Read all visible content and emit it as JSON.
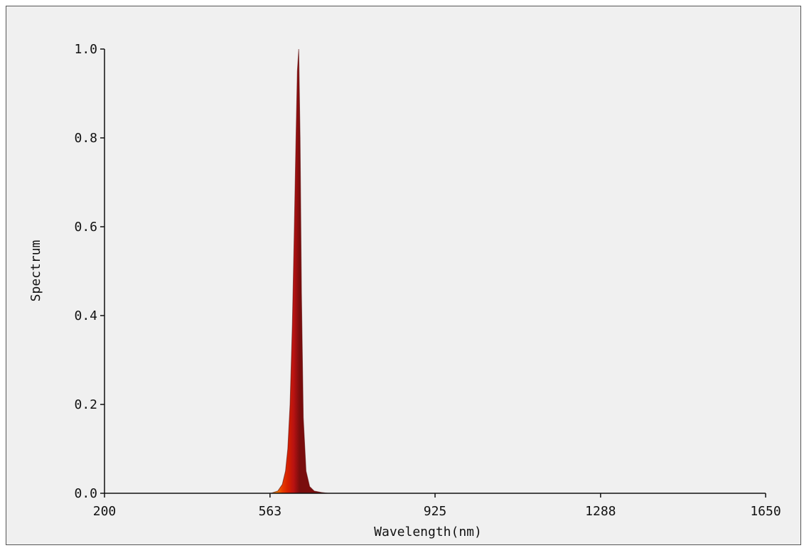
{
  "chart_data": {
    "type": "area",
    "title": "",
    "xlabel": "Wavelength(nm)",
    "ylabel": "Spectrum",
    "xlim": [
      200,
      1650
    ],
    "ylim": [
      0,
      1.0
    ],
    "x_ticks": [
      "200",
      "563",
      "925",
      "1288",
      "1650"
    ],
    "y_ticks": [
      "0.0",
      "0.2",
      "0.4",
      "0.6",
      "0.8",
      "1.0"
    ],
    "grid": false,
    "legend": "none",
    "series": [
      {
        "x": [
          565,
          580,
          590,
          597,
          602,
          607,
          612,
          616,
          620,
          623,
          626,
          629,
          632,
          636,
          642,
          650,
          660,
          675,
          690
        ],
        "y": [
          0.0,
          0.005,
          0.02,
          0.05,
          0.1,
          0.2,
          0.38,
          0.58,
          0.8,
          0.95,
          1.0,
          0.8,
          0.45,
          0.17,
          0.05,
          0.015,
          0.005,
          0.002,
          0.0
        ]
      }
    ],
    "fill_gradient": [
      "#f2b000",
      "#ef7a00",
      "#e83a00",
      "#d42000",
      "#b81212",
      "#7a0d0d"
    ],
    "axis_color": "#111111",
    "background": "#f0f0f0"
  }
}
